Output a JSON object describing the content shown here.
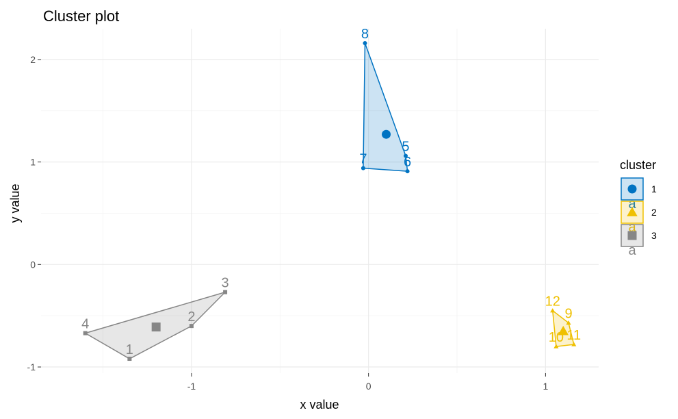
{
  "chart_data": {
    "type": "scatter",
    "title": "Cluster plot",
    "xlabel": "x value",
    "ylabel": "y value",
    "xlim": [
      -1.85,
      1.3
    ],
    "ylim": [
      -1.06,
      2.3
    ],
    "x_ticks": [
      -1,
      0,
      1
    ],
    "y_ticks": [
      -1,
      0,
      1,
      2
    ],
    "x_tick_labels": [
      "-1",
      "0",
      "1"
    ],
    "y_tick_labels": [
      "-1",
      "0",
      "1",
      "2"
    ],
    "grid": true,
    "legend": {
      "title": "cluster",
      "placement": "right",
      "entries": [
        {
          "label": "1",
          "key_text": "a"
        },
        {
          "label": "2",
          "key_text": "a"
        },
        {
          "label": "3",
          "key_text": "a"
        }
      ]
    },
    "clusters": [
      {
        "name": "1",
        "shape": "circle",
        "color": "#0073C2",
        "fill": "#0073C2",
        "center": {
          "x": 0.1,
          "y": 1.27
        },
        "points": [
          {
            "label": "5",
            "x": 0.21,
            "y": 1.06
          },
          {
            "label": "6",
            "x": 0.22,
            "y": 0.91
          },
          {
            "label": "7",
            "x": -0.03,
            "y": 0.94
          },
          {
            "label": "8",
            "x": -0.02,
            "y": 2.16
          }
        ],
        "hull": [
          "8",
          "5",
          "6",
          "7"
        ]
      },
      {
        "name": "2",
        "shape": "triangle",
        "color": "#EFC000",
        "fill": "#EFC000",
        "center": {
          "x": 1.1,
          "y": -0.65
        },
        "points": [
          {
            "label": "9",
            "x": 1.13,
            "y": -0.57
          },
          {
            "label": "10",
            "x": 1.06,
            "y": -0.8
          },
          {
            "label": "11",
            "x": 1.16,
            "y": -0.78
          },
          {
            "label": "12",
            "x": 1.04,
            "y": -0.45
          }
        ],
        "hull": [
          "12",
          "9",
          "11",
          "10"
        ]
      },
      {
        "name": "3",
        "shape": "square",
        "color": "#868686",
        "fill": "#868686",
        "center": {
          "x": -1.2,
          "y": -0.61
        },
        "points": [
          {
            "label": "1",
            "x": -1.35,
            "y": -0.92
          },
          {
            "label": "2",
            "x": -1.0,
            "y": -0.6
          },
          {
            "label": "3",
            "x": -0.81,
            "y": -0.27
          },
          {
            "label": "4",
            "x": -1.6,
            "y": -0.67
          }
        ],
        "hull": [
          "4",
          "3",
          "2",
          "1"
        ]
      }
    ]
  }
}
